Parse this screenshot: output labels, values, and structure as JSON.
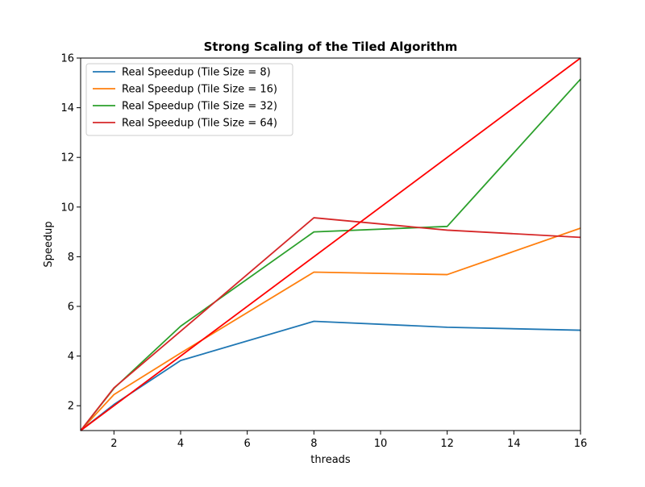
{
  "chart_data": {
    "type": "line",
    "title": "Strong Scaling of the Tiled Algorithm",
    "xlabel": "threads",
    "ylabel": "Speedup",
    "xlim": [
      1,
      16
    ],
    "ylim": [
      1,
      16
    ],
    "xticks": [
      2,
      4,
      6,
      8,
      10,
      12,
      14,
      16
    ],
    "yticks": [
      2,
      4,
      6,
      8,
      10,
      12,
      14,
      16
    ],
    "grid": false,
    "legend_position": "upper-left",
    "x": [
      1,
      2,
      4,
      8,
      12,
      16
    ],
    "series": [
      {
        "name": "Real Speedup (Tile Size = 8)",
        "color": "#1f77b4",
        "values": [
          1,
          2.05,
          3.82,
          5.4,
          5.16,
          5.04
        ]
      },
      {
        "name": "Real Speedup (Tile Size = 16)",
        "color": "#ff7f0e",
        "values": [
          1,
          2.45,
          4.12,
          7.38,
          7.28,
          9.15
        ]
      },
      {
        "name": "Real Speedup (Tile Size = 32)",
        "color": "#2ca02c",
        "values": [
          1,
          2.7,
          5.2,
          9.0,
          9.22,
          15.15
        ]
      },
      {
        "name": "Real Speedup (Tile Size = 64)",
        "color": "#d62728",
        "values": [
          1,
          2.72,
          5.0,
          9.57,
          9.07,
          8.78
        ]
      }
    ],
    "reference_line": {
      "color": "#ff0000",
      "x": [
        1,
        16
      ],
      "values": [
        1,
        16
      ]
    }
  }
}
